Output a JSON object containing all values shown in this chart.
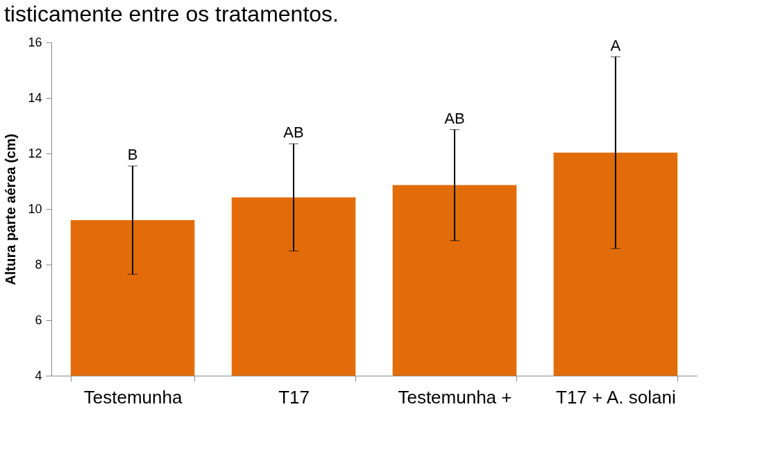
{
  "chart_data": {
    "type": "bar",
    "title": "tisticamente entre os tratamentos.",
    "ylabel": "Altura parte aérea (cm)",
    "categories": [
      "Testemunha",
      "T17",
      "Testemunha +",
      "T17 + A. solani"
    ],
    "values": [
      9.6,
      10.42,
      10.86,
      12.03
    ],
    "color": "#e36c0a",
    "errors": [
      1.95,
      1.93,
      2.0,
      3.45
    ],
    "ylim": [
      4,
      16
    ],
    "yticks": [
      4,
      6,
      8,
      10,
      12,
      14,
      16
    ],
    "grid": false,
    "annotations": [
      {
        "text": "B",
        "x": "Testemunha",
        "y": 11.55
      },
      {
        "text": "AB",
        "x": "T17",
        "y": 12.35
      },
      {
        "text": "AB",
        "x": "Testemunha +",
        "y": 12.86
      },
      {
        "text": "A",
        "x": "T17 + A. solani",
        "y": 15.48
      }
    ]
  }
}
